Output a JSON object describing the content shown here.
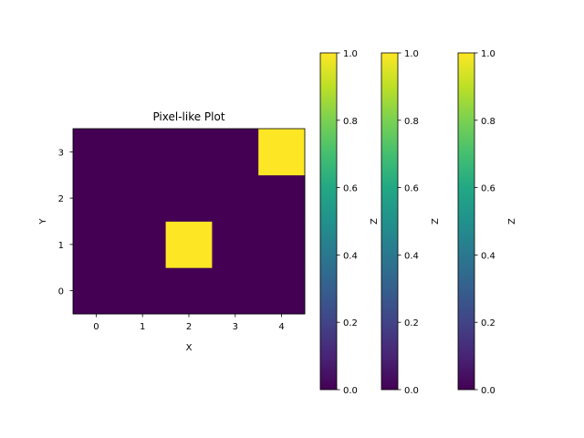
{
  "chart_data": {
    "type": "heatmap",
    "title": "Pixel-like Plot",
    "xlabel": "X",
    "ylabel": "Y",
    "x_ticks": [
      "0",
      "1",
      "2",
      "3",
      "4"
    ],
    "y_ticks": [
      "0",
      "1",
      "2",
      "3"
    ],
    "xlim": [
      -0.5,
      4.5
    ],
    "ylim": [
      -0.5,
      3.5
    ],
    "grid": [
      [
        0,
        0,
        0,
        0,
        0
      ],
      [
        0,
        0,
        1,
        0,
        0
      ],
      [
        0,
        0,
        0,
        0,
        0
      ],
      [
        0,
        0,
        0,
        0,
        1
      ]
    ],
    "colormap": "viridis",
    "colormap_low": "#440154",
    "colormap_high": "#fde725",
    "colorbars": [
      {
        "label": "Z",
        "ticks": [
          "0.0",
          "0.2",
          "0.4",
          "0.6",
          "0.8",
          "1.0"
        ],
        "vmin": 0,
        "vmax": 1
      },
      {
        "label": "Z",
        "ticks": [
          "0.0",
          "0.2",
          "0.4",
          "0.6",
          "0.8",
          "1.0"
        ],
        "vmin": 0,
        "vmax": 1
      },
      {
        "label": "Z",
        "ticks": [
          "0.0",
          "0.2",
          "0.4",
          "0.6",
          "0.8",
          "1.0"
        ],
        "vmin": 0,
        "vmax": 1
      }
    ]
  }
}
